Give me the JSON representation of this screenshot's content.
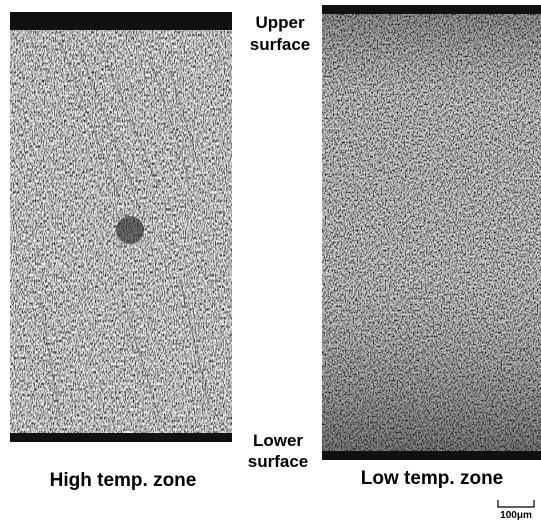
{
  "upper_label": {
    "line1": "Upper",
    "line2": "surface"
  },
  "lower_label": {
    "line1": "Lower",
    "line2": "surface"
  },
  "panels": [
    {
      "caption": "High temp.  zone"
    },
    {
      "caption": "Low temp.  zone"
    }
  ],
  "scale_bar": {
    "label": "100μm"
  }
}
